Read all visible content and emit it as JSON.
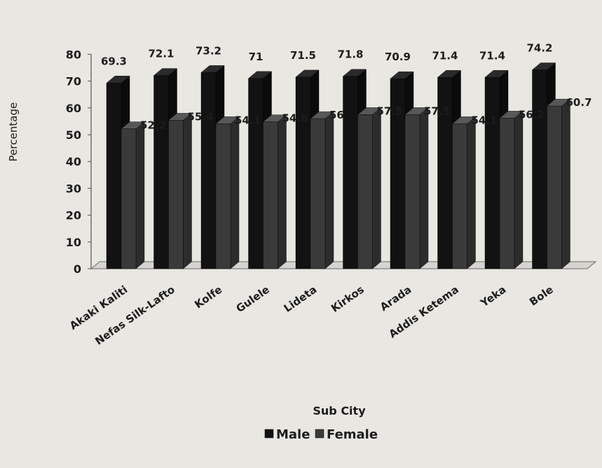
{
  "chart_data": {
    "type": "bar",
    "categories": [
      "Akaki Kaliti",
      "Nefas Silk-Lafto",
      "Kolfe",
      "Gulele",
      "Lideta",
      "Kirkos",
      "Arada",
      "Addis Ketema",
      "Yeka",
      "Bole"
    ],
    "series": [
      {
        "name": "Male",
        "values": [
          69.3,
          72.1,
          73.2,
          71,
          71.5,
          71.8,
          70.9,
          71.4,
          71.4,
          74.2
        ],
        "labels": [
          "69.3",
          "72.1",
          "73.2",
          "71",
          "71.5",
          "71.8",
          "70.9",
          "71.4",
          "71.4",
          "74.2"
        ],
        "color": "#121212"
      },
      {
        "name": "Female",
        "values": [
          52.2,
          55.4,
          54.1,
          54.8,
          56,
          57.5,
          57.5,
          54.1,
          56.2,
          60.7
        ],
        "labels": [
          "52.2",
          "55.4",
          "54.1",
          "54.8",
          "56",
          "57.5",
          "57.5",
          "54.1",
          "56.2",
          "60.7"
        ],
        "color": "#3a3a3a"
      }
    ],
    "title": "",
    "xlabel": "Sub City",
    "ylabel": "Percentage",
    "ylim": [
      0,
      80
    ],
    "yticks": [
      "0",
      "10",
      "20",
      "30",
      "40",
      "50",
      "60",
      "70",
      "80"
    ],
    "grid": false,
    "legend": "bottom",
    "style": "3d-clustered-bar"
  }
}
